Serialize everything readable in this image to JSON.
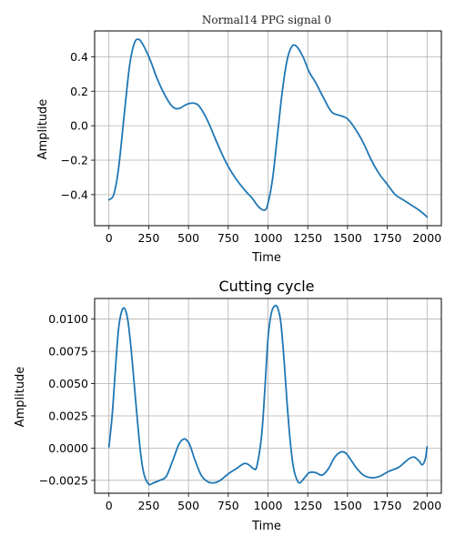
{
  "chart_data": [
    {
      "type": "line",
      "title": "Normal14 PPG signal 0",
      "xlabel": "Time",
      "ylabel": "Amplitude",
      "xlim": [
        -90,
        2090
      ],
      "ylim": [
        -0.58,
        0.55
      ],
      "xticks": [
        0,
        250,
        500,
        750,
        1000,
        1250,
        1500,
        1750,
        2000
      ],
      "xtick_labels": [
        "0",
        "250",
        "500",
        "750",
        "1000",
        "1250",
        "1500",
        "1750",
        "2000"
      ],
      "yticks": [
        -0.4,
        -0.2,
        0.0,
        0.2,
        0.4
      ],
      "ytick_labels": [
        "−0.4",
        "−0.2",
        "0.0",
        "0.2",
        "0.4"
      ],
      "grid": true,
      "color": "#1f77b4",
      "series": [
        {
          "x": [
            0,
            30,
            60,
            100,
            130,
            160,
            190,
            220,
            260,
            300,
            350,
            400,
            440,
            480,
            510,
            540,
            570,
            620,
            680,
            740,
            800,
            860,
            900,
            940,
            980,
            1000,
            1030,
            1060,
            1090,
            1120,
            1150,
            1180,
            1220,
            1260,
            1300,
            1350,
            1400,
            1450,
            1500,
            1550,
            1600,
            1650,
            1700,
            1750,
            1800,
            1850,
            1900,
            1950,
            1990,
            2000
          ],
          "y": [
            -0.43,
            -0.4,
            -0.25,
            0.1,
            0.35,
            0.48,
            0.5,
            0.46,
            0.38,
            0.28,
            0.18,
            0.11,
            0.1,
            0.12,
            0.13,
            0.13,
            0.11,
            0.03,
            -0.1,
            -0.22,
            -0.31,
            -0.38,
            -0.42,
            -0.47,
            -0.49,
            -0.45,
            -0.3,
            -0.05,
            0.2,
            0.38,
            0.46,
            0.46,
            0.4,
            0.31,
            0.25,
            0.16,
            0.08,
            0.06,
            0.04,
            -0.02,
            -0.1,
            -0.2,
            -0.28,
            -0.34,
            -0.4,
            -0.43,
            -0.46,
            -0.49,
            -0.52,
            -0.53
          ]
        }
      ]
    },
    {
      "type": "line",
      "title": "Cutting cycle",
      "xlabel": "Time",
      "ylabel": "Amplitude",
      "xlim": [
        -90,
        2090
      ],
      "ylim": [
        -0.0035,
        0.0116
      ],
      "xticks": [
        0,
        250,
        500,
        750,
        1000,
        1250,
        1500,
        1750,
        2000
      ],
      "xtick_labels": [
        "0",
        "250",
        "500",
        "750",
        "1000",
        "1250",
        "1500",
        "1750",
        "2000"
      ],
      "yticks": [
        -0.0025,
        0.0,
        0.0025,
        0.005,
        0.0075,
        0.01
      ],
      "ytick_labels": [
        "−0.0025",
        "0.0000",
        "0.0025",
        "0.0050",
        "0.0075",
        "0.0100"
      ],
      "grid": true,
      "color": "#1f77b4",
      "series": [
        {
          "x": [
            0,
            20,
            40,
            60,
            80,
            100,
            120,
            140,
            160,
            180,
            200,
            220,
            250,
            280,
            320,
            360,
            400,
            440,
            470,
            490,
            510,
            540,
            580,
            620,
            660,
            700,
            750,
            800,
            850,
            880,
            910,
            930,
            960,
            980,
            1000,
            1020,
            1040,
            1060,
            1080,
            1100,
            1120,
            1140,
            1160,
            1180,
            1200,
            1230,
            1260,
            1300,
            1340,
            1380,
            1420,
            1460,
            1490,
            1520,
            1560,
            1600,
            1650,
            1700,
            1760,
            1820,
            1860,
            1890,
            1920,
            1950,
            1970,
            1990,
            2000
          ],
          "y": [
            0.0001,
            0.0025,
            0.006,
            0.0092,
            0.0106,
            0.0108,
            0.0098,
            0.0076,
            0.0048,
            0.002,
            -0.0005,
            -0.002,
            -0.0028,
            -0.0027,
            -0.0025,
            -0.0022,
            -0.001,
            0.0003,
            0.0007,
            0.0006,
            0.0002,
            -0.0009,
            -0.0021,
            -0.0026,
            -0.0027,
            -0.0025,
            -0.002,
            -0.0016,
            -0.0012,
            -0.0013,
            -0.0016,
            -0.0014,
            0.001,
            0.0045,
            0.0085,
            0.0104,
            0.011,
            0.0109,
            0.0098,
            0.007,
            0.0035,
            0.0005,
            -0.0015,
            -0.0024,
            -0.0027,
            -0.0023,
            -0.0019,
            -0.0019,
            -0.0021,
            -0.0016,
            -0.0007,
            -0.0003,
            -0.0004,
            -0.0009,
            -0.0016,
            -0.0021,
            -0.0023,
            -0.0022,
            -0.0018,
            -0.0015,
            -0.0011,
            -0.0008,
            -0.0007,
            -0.001,
            -0.0013,
            -0.0008,
            0.0001
          ]
        }
      ]
    }
  ]
}
